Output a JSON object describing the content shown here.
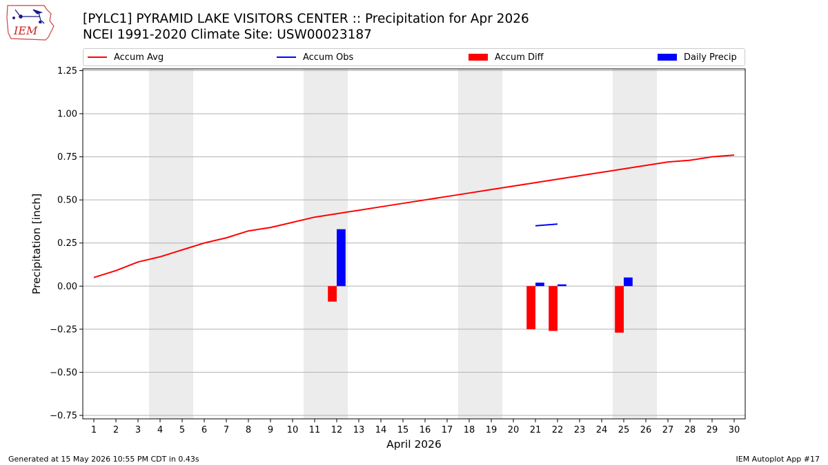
{
  "header": {
    "title_line1": "[PYLC1] PYRAMID LAKE VISITORS CENTER :: Precipitation for Apr 2026",
    "title_line2": "NCEI 1991-2020 Climate Site: USW00023187"
  },
  "logo": {
    "text": "IEM",
    "icon": "iem-iowa-weather-logo"
  },
  "footer": {
    "left": "Generated at 15 May 2026 10:55 PM CDT in 0.43s",
    "right": "IEM Autoplot App #17"
  },
  "colors": {
    "accum_avg": "#ff0000",
    "accum_obs": "#0000ff",
    "accum_diff": "#ff0000",
    "daily_precip": "#0000ff",
    "weekend_band": "#ececec",
    "grid": "#b0b0b0"
  },
  "chart_data": {
    "type": "bar",
    "xlabel": "April 2026",
    "ylabel": "Precipitation [inch]",
    "xlim": [
      0.5,
      30.5
    ],
    "ylim": [
      -0.77,
      1.26
    ],
    "x_ticks": [
      1,
      2,
      3,
      4,
      5,
      6,
      7,
      8,
      9,
      10,
      11,
      12,
      13,
      14,
      15,
      16,
      17,
      18,
      19,
      20,
      21,
      22,
      23,
      24,
      25,
      26,
      27,
      28,
      29,
      30
    ],
    "y_ticks": [
      -0.75,
      -0.5,
      -0.25,
      0.0,
      0.25,
      0.5,
      0.75,
      1.0,
      1.25
    ],
    "y_tick_labels": [
      "−0.75",
      "−0.50",
      "−0.25",
      "0.00",
      "0.25",
      "0.50",
      "0.75",
      "1.00",
      "1.25"
    ],
    "grid": "horizontal",
    "legend_position": "top",
    "weekend_bands": [
      [
        3.5,
        5.5
      ],
      [
        10.5,
        12.5
      ],
      [
        17.5,
        19.5
      ],
      [
        24.5,
        26.5
      ]
    ],
    "series": [
      {
        "name": "Accum Avg",
        "kind": "line",
        "x": [
          1,
          2,
          3,
          4,
          5,
          6,
          7,
          8,
          9,
          10,
          11,
          12,
          13,
          14,
          15,
          16,
          17,
          18,
          19,
          20,
          21,
          22,
          23,
          24,
          25,
          26,
          27,
          28,
          29,
          30
        ],
        "values": [
          0.05,
          0.09,
          0.14,
          0.17,
          0.21,
          0.25,
          0.28,
          0.32,
          0.34,
          0.37,
          0.4,
          0.42,
          0.44,
          0.46,
          0.48,
          0.5,
          0.52,
          0.54,
          0.56,
          0.58,
          0.6,
          0.62,
          0.64,
          0.66,
          0.68,
          0.7,
          0.72,
          0.73,
          0.75,
          0.76
        ]
      },
      {
        "name": "Accum Obs",
        "kind": "line",
        "x": [
          21,
          22
        ],
        "values": [
          0.35,
          0.36
        ]
      },
      {
        "name": "Accum Diff",
        "kind": "bar",
        "x": [
          12,
          21,
          22,
          25
        ],
        "values": [
          -0.09,
          -0.25,
          -0.26,
          -0.27
        ]
      },
      {
        "name": "Daily Precip",
        "kind": "bar",
        "x": [
          12,
          21,
          22,
          25
        ],
        "values": [
          0.33,
          0.02,
          0.01,
          0.05
        ]
      }
    ]
  }
}
